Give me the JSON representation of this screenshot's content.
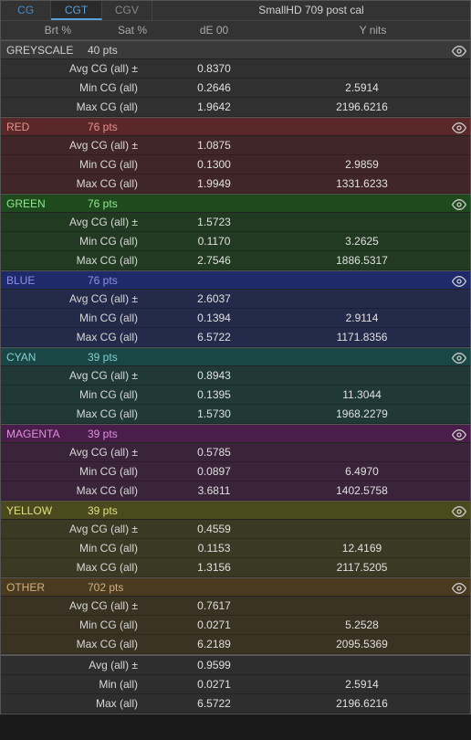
{
  "tabs": {
    "cg": "CG",
    "cgt": "CGT",
    "cgv": "CGV"
  },
  "title": "SmallHD 709 post cal",
  "headers": {
    "brt": "Brt %",
    "sat": "Sat %",
    "de": "dE 00",
    "y": "Y nits"
  },
  "row_labels": {
    "avg": "Avg CG (all) ±",
    "min": "Min CG (all)",
    "max": "Max CG (all)"
  },
  "summary_labels": {
    "avg": "Avg (all) ±",
    "min": "Min (all)",
    "max": "Max (all)"
  },
  "colors": {
    "greyscale_hdr": "#3a3a3a",
    "greyscale_row": "#303030",
    "red_hdr": "#5a2828",
    "red_row": "#402626",
    "green_hdr": "#1e4a1e",
    "green_row": "#223a22",
    "blue_hdr": "#1e2a6a",
    "blue_row": "#242a4a",
    "cyan_hdr": "#1a4646",
    "cyan_row": "#203838",
    "magenta_hdr": "#4a1e4a",
    "magenta_row": "#3a243a",
    "yellow_hdr": "#4a4a1e",
    "yellow_row": "#3a3a24",
    "other_hdr": "#4a3a20",
    "other_row": "#3a3222",
    "summary_row": "#2e2e2e",
    "text_greyscale": "#d0d0d0",
    "text_red": "#e89090",
    "text_green": "#90e890",
    "text_blue": "#9090e8",
    "text_cyan": "#80d0d0",
    "text_magenta": "#e090e0",
    "text_yellow": "#e0e080",
    "text_other": "#d0b080"
  },
  "sections": [
    {
      "key": "greyscale",
      "name": "GREYSCALE",
      "pts": "40 pts",
      "rows": [
        {
          "de": "0.8370",
          "y": ""
        },
        {
          "de": "0.2646",
          "y": "2.5914"
        },
        {
          "de": "1.9642",
          "y": "2196.6216"
        }
      ]
    },
    {
      "key": "red",
      "name": "RED",
      "pts": "76 pts",
      "rows": [
        {
          "de": "1.0875",
          "y": ""
        },
        {
          "de": "0.1300",
          "y": "2.9859"
        },
        {
          "de": "1.9949",
          "y": "1331.6233"
        }
      ]
    },
    {
      "key": "green",
      "name": "GREEN",
      "pts": "76 pts",
      "rows": [
        {
          "de": "1.5723",
          "y": ""
        },
        {
          "de": "0.1170",
          "y": "3.2625"
        },
        {
          "de": "2.7546",
          "y": "1886.5317"
        }
      ]
    },
    {
      "key": "blue",
      "name": "BLUE",
      "pts": "76 pts",
      "rows": [
        {
          "de": "2.6037",
          "y": ""
        },
        {
          "de": "0.1394",
          "y": "2.9114"
        },
        {
          "de": "6.5722",
          "y": "1171.8356"
        }
      ]
    },
    {
      "key": "cyan",
      "name": "CYAN",
      "pts": "39 pts",
      "rows": [
        {
          "de": "0.8943",
          "y": ""
        },
        {
          "de": "0.1395",
          "y": "11.3044"
        },
        {
          "de": "1.5730",
          "y": "1968.2279"
        }
      ]
    },
    {
      "key": "magenta",
      "name": "MAGENTA",
      "pts": "39 pts",
      "rows": [
        {
          "de": "0.5785",
          "y": ""
        },
        {
          "de": "0.0897",
          "y": "6.4970"
        },
        {
          "de": "3.6811",
          "y": "1402.5758"
        }
      ]
    },
    {
      "key": "yellow",
      "name": "YELLOW",
      "pts": "39 pts",
      "rows": [
        {
          "de": "0.4559",
          "y": ""
        },
        {
          "de": "0.1153",
          "y": "12.4169"
        },
        {
          "de": "1.3156",
          "y": "2117.5205"
        }
      ]
    },
    {
      "key": "other",
      "name": "OTHER",
      "pts": "702 pts",
      "rows": [
        {
          "de": "0.7617",
          "y": ""
        },
        {
          "de": "0.0271",
          "y": "5.2528"
        },
        {
          "de": "6.2189",
          "y": "2095.5369"
        }
      ]
    }
  ],
  "summary": [
    {
      "de": "0.9599",
      "y": ""
    },
    {
      "de": "0.0271",
      "y": "2.5914"
    },
    {
      "de": "6.5722",
      "y": "2196.6216"
    }
  ]
}
